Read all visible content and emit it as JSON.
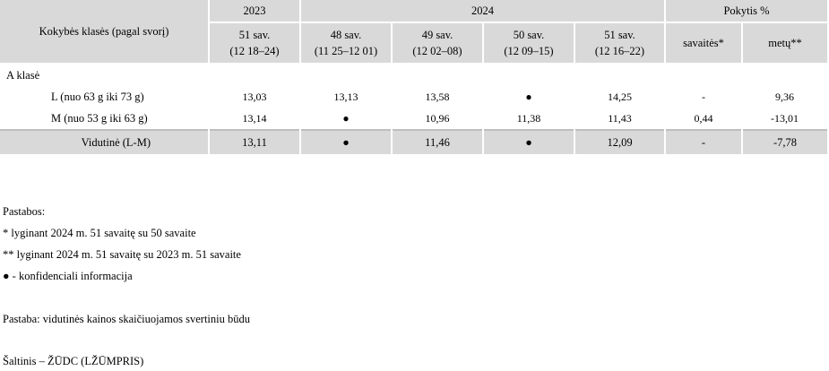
{
  "table": {
    "stub_header": "Kokybės klasės (pagal svorį)",
    "year_headers": [
      "2023",
      "2024",
      "Pokytis %"
    ],
    "week_headers": [
      {
        "week": "51 sav.",
        "range": "(12 18–24)"
      },
      {
        "week": "48 sav.",
        "range": "(11 25–12 01)"
      },
      {
        "week": "49 sav.",
        "range": "(12 02–08)"
      },
      {
        "week": "50 sav.",
        "range": "(12 09–15)"
      },
      {
        "week": "51 sav.",
        "range": "(12 16–22)"
      }
    ],
    "change_headers": [
      "savaitės*",
      "metų**"
    ],
    "group_label": "A klasė",
    "rows": [
      {
        "label": "L (nuo 63 g iki 73 g)",
        "values": [
          "13,03",
          "13,13",
          "13,58",
          "●",
          "14,25",
          "-",
          "9,36"
        ]
      },
      {
        "label": "M (nuo 53 g iki 63 g)",
        "values": [
          "13,14",
          "●",
          "10,96",
          "11,38",
          "11,43",
          "0,44",
          "-13,01"
        ]
      }
    ],
    "average": {
      "label": "Vidutinė (L-M)",
      "values": [
        "13,11",
        "●",
        "11,46",
        "●",
        "12,09",
        "-",
        "-7,78"
      ]
    }
  },
  "notes": {
    "title": "Pastabos:",
    "note1": "* lyginant 2024 m. 51 savaitę su 50 savaite",
    "note2": "** lyginant 2024 m. 51 savaitę su 2023 m. 51 savaite",
    "note3": "● - konfidenciali informacija",
    "note4": "Pastaba: vidutinės kainos skaičiuojamos svertiniu būdu",
    "source": "Šaltinis – ŽŪDC (LŽŪMPRIS)"
  }
}
